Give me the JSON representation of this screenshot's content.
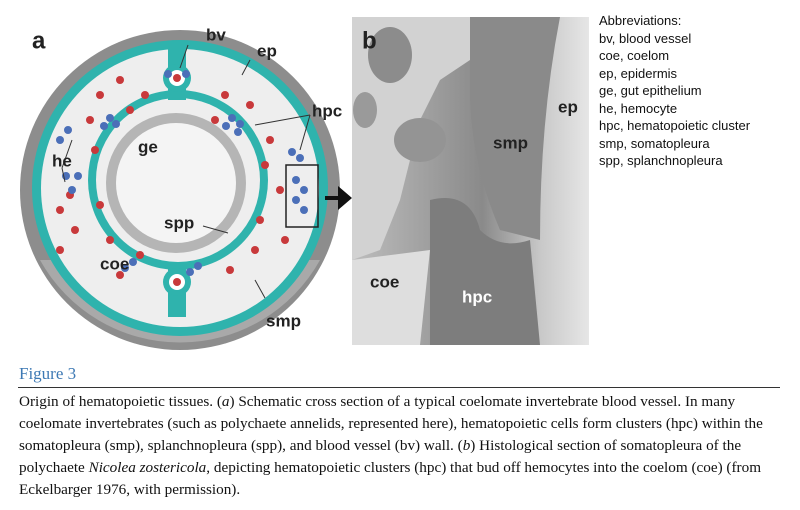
{
  "panel_a": {
    "label": "a",
    "labels": {
      "bv": "bv",
      "ep": "ep",
      "hpc": "hpc",
      "he": "he",
      "ge": "ge",
      "spp": "spp",
      "coe": "coe",
      "smp": "smp"
    }
  },
  "panel_b": {
    "label": "b",
    "labels": {
      "smp": "smp",
      "ep": "ep",
      "coe": "coe",
      "hpc": "hpc"
    }
  },
  "abbreviations": {
    "title": "Abbreviations:",
    "items": [
      "bv, blood vessel",
      "coe, coelom",
      "ep, epidermis",
      "ge, gut epithelium",
      "he, hemocyte",
      "hpc, hematopoietic cluster",
      "smp, somatopleura",
      "spp, splanchnopleura"
    ]
  },
  "figure": {
    "title": "Figure 3",
    "caption": [
      "Origin of hematopoietic tissues. (",
      "a",
      ") Schematic cross section of a typical coelomate invertebrate blood vessel. In many coelomate invertebrates (such as polychaete annelids, represented here), hematopoietic cells form clusters (hpc) within the somatopleura (smp), splanchnopleura (spp), and blood vessel (bv) wall. (",
      "b",
      ") Histological section of somatopleura of the polychaete ",
      "Nicolea zostericola",
      ", depicting hematopoietic clusters (hpc) that bud off hemocytes into the coelom (coe) (from Eckelbarger 1976, with permission)."
    ]
  }
}
